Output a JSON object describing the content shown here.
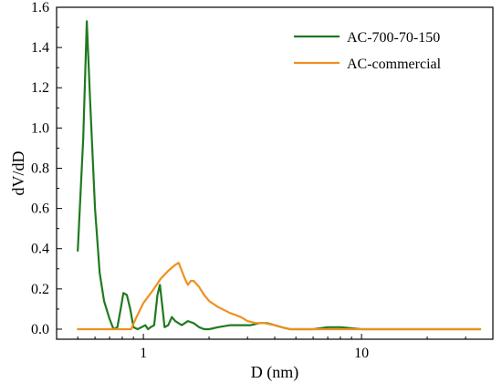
{
  "chart_data": {
    "type": "line",
    "title": "",
    "xlabel": "D (nm)",
    "ylabel": "dV/dD",
    "x_scale": "log",
    "xlim": [
      0.4,
      40
    ],
    "ylim": [
      -0.05,
      1.6
    ],
    "x_ticks": [
      1,
      10
    ],
    "x_tick_labels": [
      "1",
      "10"
    ],
    "y_ticks": [
      0.0,
      0.2,
      0.4,
      0.6,
      0.8,
      1.0,
      1.2,
      1.4,
      1.6
    ],
    "y_tick_labels": [
      "0.0",
      "0.2",
      "0.4",
      "0.6",
      "0.8",
      "1.0",
      "1.2",
      "1.4",
      "1.6"
    ],
    "grid": false,
    "legend_position": "top-right",
    "series": [
      {
        "name": "AC-700-70-150",
        "color": "#1f7a1f",
        "x": [
          0.5,
          0.53,
          0.55,
          0.57,
          0.6,
          0.63,
          0.66,
          0.7,
          0.73,
          0.76,
          0.79,
          0.81,
          0.84,
          0.87,
          0.9,
          0.94,
          0.98,
          1.02,
          1.05,
          1.08,
          1.12,
          1.16,
          1.19,
          1.22,
          1.25,
          1.3,
          1.35,
          1.4,
          1.45,
          1.5,
          1.6,
          1.7,
          1.8,
          1.9,
          2.0,
          2.2,
          2.5,
          2.8,
          3.1,
          3.4,
          3.7,
          4.0,
          4.3,
          4.7,
          5.2,
          6.0,
          7.0,
          8.0,
          10.0,
          13.0,
          18.0,
          25.0,
          35.0
        ],
        "y": [
          0.39,
          0.95,
          1.53,
          1.13,
          0.6,
          0.28,
          0.14,
          0.05,
          0.0,
          0.01,
          0.11,
          0.18,
          0.17,
          0.1,
          0.01,
          0.0,
          0.01,
          0.02,
          0.0,
          0.01,
          0.02,
          0.17,
          0.22,
          0.12,
          0.01,
          0.02,
          0.06,
          0.04,
          0.03,
          0.02,
          0.04,
          0.03,
          0.01,
          0.0,
          0.0,
          0.01,
          0.02,
          0.02,
          0.02,
          0.03,
          0.03,
          0.02,
          0.01,
          0.0,
          0.0,
          0.0,
          0.01,
          0.01,
          0.0,
          0.0,
          0.0,
          0.0,
          0.0
        ]
      },
      {
        "name": "AC-commercial",
        "color": "#f0901e",
        "x": [
          0.5,
          0.6,
          0.7,
          0.8,
          0.88,
          0.92,
          1.0,
          1.1,
          1.2,
          1.3,
          1.4,
          1.45,
          1.5,
          1.55,
          1.6,
          1.65,
          1.7,
          1.8,
          1.9,
          2.0,
          2.2,
          2.5,
          2.8,
          3.0,
          3.3,
          3.6,
          4.0,
          4.3,
          4.7,
          5.2,
          6.0,
          7.0,
          8.0,
          10.0,
          13.0,
          18.0,
          25.0,
          35.0
        ],
        "y": [
          0.0,
          0.0,
          0.0,
          0.0,
          0.0,
          0.05,
          0.13,
          0.19,
          0.25,
          0.29,
          0.32,
          0.33,
          0.29,
          0.25,
          0.22,
          0.24,
          0.24,
          0.21,
          0.17,
          0.14,
          0.11,
          0.08,
          0.06,
          0.04,
          0.03,
          0.03,
          0.02,
          0.01,
          0.0,
          0.0,
          0.0,
          0.0,
          0.0,
          0.0,
          0.0,
          0.0,
          0.0,
          0.0
        ]
      }
    ]
  }
}
